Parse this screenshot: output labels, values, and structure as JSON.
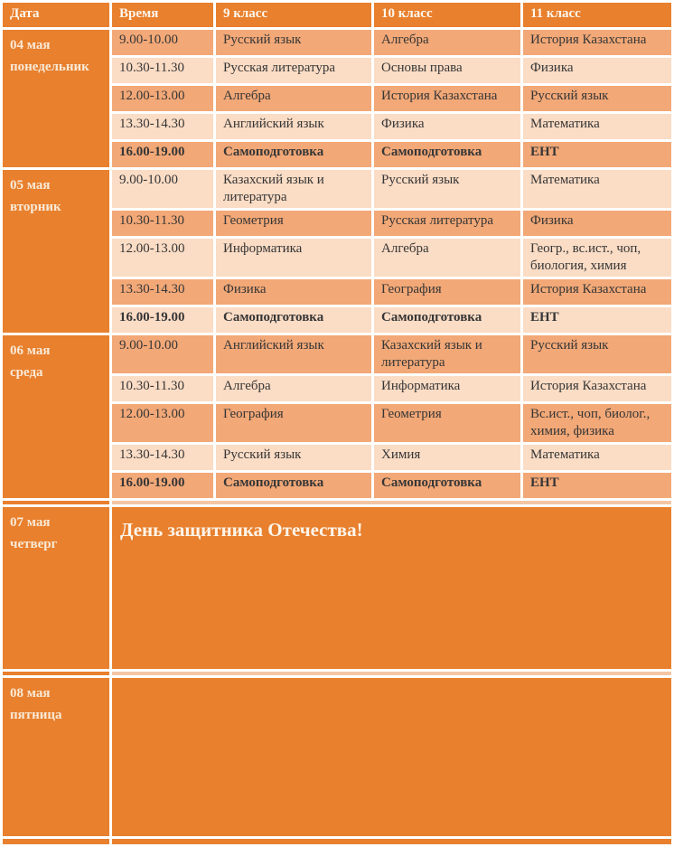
{
  "table": {
    "columns": [
      "Дата",
      "Время",
      "9 класс",
      "10 класс",
      "11 класс"
    ]
  },
  "days": [
    {
      "date": "04 мая",
      "weekday": "понедельник",
      "lessons": [
        {
          "time": "9.00-10.00",
          "g9": "Русский язык",
          "g10": "Алгебра",
          "g11": "История Казахстана",
          "bold": false
        },
        {
          "time": "10.30-11.30",
          "g9": "Русская литература",
          "g10": "Основы права",
          "g11": "Физика",
          "bold": false
        },
        {
          "time": "12.00-13.00",
          "g9": "Алгебра",
          "g10": "История Казахстана",
          "g11": "Русский язык",
          "bold": false
        },
        {
          "time": "13.30-14.30",
          "g9": "Английский язык",
          "g10": "Физика",
          "g11": "Математика",
          "bold": false
        },
        {
          "time": "16.00-19.00",
          "g9": "Самоподготовка",
          "g10": "Самоподготовка",
          "g11": "ЕНТ",
          "bold": true
        }
      ]
    },
    {
      "date": "05 мая",
      "weekday": "вторник",
      "lessons": [
        {
          "time": "9.00-10.00",
          "g9": "Казахский язык и литература",
          "g10": "Русский язык",
          "g11": "Математика",
          "bold": false
        },
        {
          "time": "10.30-11.30",
          "g9": "Геометрия",
          "g10": "Русская литература",
          "g11": "Физика",
          "bold": false
        },
        {
          "time": "12.00-13.00",
          "g9": "Информатика",
          "g10": "Алгебра",
          "g11": "Геогр., вс.ист., чоп, биология, химия",
          "bold": false
        },
        {
          "time": "13.30-14.30",
          "g9": "Физика",
          "g10": "География",
          "g11": "История Казахстана",
          "bold": false
        },
        {
          "time": "16.00-19.00",
          "g9": "Самоподготовка",
          "g10": "Самоподготовка",
          "g11": "ЕНТ",
          "bold": true
        }
      ]
    },
    {
      "date": "06 мая",
      "weekday": "среда",
      "lessons": [
        {
          "time": "9.00-10.00",
          "g9": "Английский язык",
          "g10": "Казахский язык и литература",
          "g11": "Русский язык",
          "bold": false
        },
        {
          "time": "10.30-11.30",
          "g9": "Алгебра",
          "g10": "Информатика",
          "g11": "История Казахстана",
          "bold": false
        },
        {
          "time": "12.00-13.00",
          "g9": "География",
          "g10": "Геометрия",
          "g11": "Вс.ист., чоп, биолог., химия, физика",
          "bold": false
        },
        {
          "time": "13.30-14.30",
          "g9": "Русский язык",
          "g10": "Химия",
          "g11": "Математика",
          "bold": false
        },
        {
          "time": "16.00-19.00",
          "g9": "Самоподготовка",
          "g10": "Самоподготовка",
          "g11": "ЕНТ",
          "bold": true
        }
      ]
    },
    {
      "date": "07 мая",
      "weekday": "четверг",
      "banner": "День защитника Отечества!"
    },
    {
      "date": "08 мая",
      "weekday": "пятница",
      "banner": ""
    }
  ],
  "colors": {
    "orange": "#E8802E",
    "row_dark": "#F2A877",
    "row_light": "#FBDCC5",
    "spacer_strip": "#F3C6A5",
    "header_text": "#FFF8EF",
    "body_text": "#363636"
  }
}
